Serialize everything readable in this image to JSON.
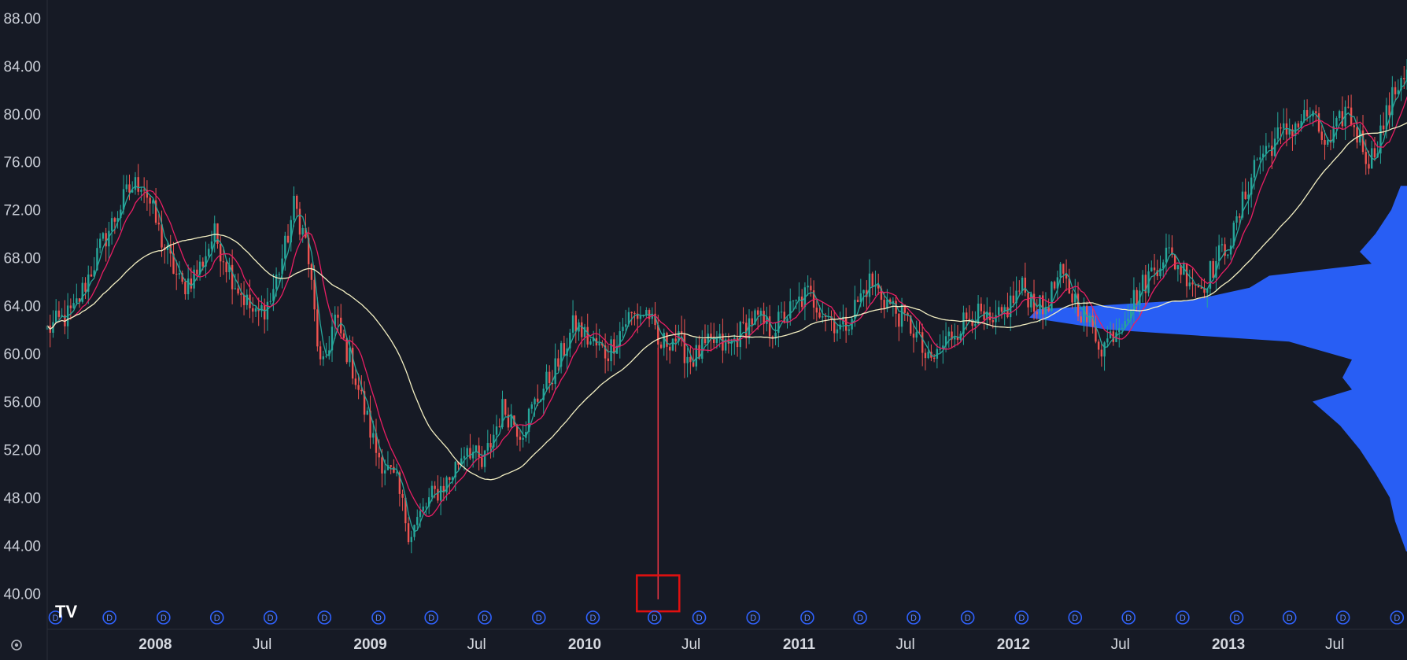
{
  "chart_data": {
    "type": "candlestick",
    "y_axis": {
      "min": 37.0,
      "max": 89.5,
      "ticks": [
        "88.00",
        "84.00",
        "80.00",
        "76.00",
        "72.00",
        "68.00",
        "64.00",
        "60.00",
        "56.00",
        "52.00",
        "48.00",
        "44.00",
        "40.00"
      ]
    },
    "x_axis": {
      "start": "2007-07",
      "end": "2013-11",
      "ticks": [
        {
          "label": "2008",
          "date": "2008-01-01",
          "type": "year"
        },
        {
          "label": "Jul",
          "date": "2008-07-01",
          "type": "month"
        },
        {
          "label": "2009",
          "date": "2009-01-01",
          "type": "year"
        },
        {
          "label": "Jul",
          "date": "2009-07-01",
          "type": "month"
        },
        {
          "label": "2010",
          "date": "2010-01-01",
          "type": "year"
        },
        {
          "label": "Jul",
          "date": "2010-07-01",
          "type": "month"
        },
        {
          "label": "2011",
          "date": "2011-01-01",
          "type": "year"
        },
        {
          "label": "Jul",
          "date": "2011-07-01",
          "type": "month"
        },
        {
          "label": "2012",
          "date": "2012-01-01",
          "type": "year"
        },
        {
          "label": "Jul",
          "date": "2012-07-01",
          "type": "month"
        },
        {
          "label": "2013",
          "date": "2013-01-01",
          "type": "year"
        },
        {
          "label": "Jul",
          "date": "2013-07-01",
          "type": "month"
        }
      ]
    },
    "price_path": [
      [
        "2007-07-01",
        62.0
      ],
      [
        "2007-08-15",
        63.5
      ],
      [
        "2007-10-01",
        69.0
      ],
      [
        "2007-11-15",
        73.5
      ],
      [
        "2007-12-10",
        74.5
      ],
      [
        "2008-01-15",
        69.0
      ],
      [
        "2008-02-15",
        65.5
      ],
      [
        "2008-03-15",
        67.0
      ],
      [
        "2008-04-10",
        70.0
      ],
      [
        "2008-05-15",
        66.0
      ],
      [
        "2008-06-20",
        63.0
      ],
      [
        "2008-07-15",
        64.5
      ],
      [
        "2008-08-10",
        69.0
      ],
      [
        "2008-08-25",
        72.5
      ],
      [
        "2008-09-15",
        69.0
      ],
      [
        "2008-10-10",
        58.0
      ],
      [
        "2008-11-01",
        63.0
      ],
      [
        "2008-12-01",
        59.0
      ],
      [
        "2009-01-10",
        52.0
      ],
      [
        "2009-02-15",
        49.0
      ],
      [
        "2009-03-09",
        45.0
      ],
      [
        "2009-04-15",
        48.0
      ],
      [
        "2009-05-15",
        49.5
      ],
      [
        "2009-06-15",
        52.5
      ],
      [
        "2009-07-10",
        50.5
      ],
      [
        "2009-08-15",
        55.5
      ],
      [
        "2009-09-15",
        53.5
      ],
      [
        "2009-10-15",
        56.5
      ],
      [
        "2009-11-15",
        59.0
      ],
      [
        "2009-12-15",
        62.5
      ],
      [
        "2010-01-10",
        61.0
      ],
      [
        "2010-02-08",
        60.0
      ],
      [
        "2010-03-15",
        63.0
      ],
      [
        "2010-04-20",
        63.5
      ],
      [
        "2010-05-06",
        60.5
      ],
      [
        "2010-06-01",
        61.5
      ],
      [
        "2010-07-01",
        59.5
      ],
      [
        "2010-08-10",
        61.0
      ],
      [
        "2010-09-01",
        60.5
      ],
      [
        "2010-10-15",
        63.0
      ],
      [
        "2010-11-15",
        62.0
      ],
      [
        "2011-01-15",
        65.0
      ],
      [
        "2011-03-15",
        62.0
      ],
      [
        "2011-05-01",
        66.0
      ],
      [
        "2011-06-15",
        63.5
      ],
      [
        "2011-07-15",
        62.0
      ],
      [
        "2011-08-10",
        59.0
      ],
      [
        "2011-09-15",
        61.5
      ],
      [
        "2011-10-25",
        63.5
      ],
      [
        "2011-11-25",
        62.0
      ],
      [
        "2012-01-15",
        65.5
      ],
      [
        "2012-02-20",
        63.5
      ],
      [
        "2012-03-20",
        66.5
      ],
      [
        "2012-04-15",
        64.5
      ],
      [
        "2012-06-01",
        60.5
      ],
      [
        "2012-07-10",
        63.5
      ],
      [
        "2012-09-15",
        68.5
      ],
      [
        "2012-11-15",
        65.5
      ],
      [
        "2012-12-15",
        68.0
      ],
      [
        "2013-01-10",
        70.0
      ],
      [
        "2013-02-15",
        76.0
      ],
      [
        "2013-03-25",
        78.0
      ],
      [
        "2013-05-20",
        80.0
      ],
      [
        "2013-06-20",
        77.0
      ],
      [
        "2013-07-20",
        80.5
      ],
      [
        "2013-08-30",
        76.0
      ],
      [
        "2013-10-20",
        83.0
      ],
      [
        "2013-11-15",
        85.0
      ]
    ],
    "spike": {
      "date": "2010-05-06",
      "low": 39.5,
      "color": "#f23645"
    },
    "moving_averages": [
      {
        "window": 20,
        "color": "#26a69a"
      },
      {
        "window": 50,
        "color": "#e91e63"
      },
      {
        "window": 200,
        "color": "#f3efc2"
      }
    ],
    "up_color": "#26a69a",
    "down_color": "#ef5350",
    "volume_profile": {
      "color": "#2962ff",
      "rows": [
        [
          43.5,
          1
        ],
        [
          46,
          15
        ],
        [
          48,
          22
        ],
        [
          50,
          40
        ],
        [
          52,
          60
        ],
        [
          54,
          85
        ],
        [
          56,
          120
        ],
        [
          57,
          70
        ],
        [
          58,
          82
        ],
        [
          59.5,
          70
        ],
        [
          61,
          150
        ],
        [
          62,
          380
        ],
        [
          63,
          480
        ],
        [
          63.7,
          470
        ],
        [
          64.5,
          270
        ],
        [
          65.5,
          200
        ],
        [
          66.5,
          175
        ],
        [
          67.5,
          45
        ],
        [
          68.5,
          60
        ],
        [
          70,
          40
        ],
        [
          72,
          20
        ],
        [
          74,
          8
        ]
      ]
    },
    "dividend_marks": [
      "2007-07-15",
      "2007-10-15",
      "2008-01-15",
      "2008-04-15",
      "2008-07-15",
      "2008-10-15",
      "2009-01-15",
      "2009-04-15",
      "2009-07-15",
      "2009-10-15",
      "2010-01-15",
      "2010-04-30",
      "2010-07-15",
      "2010-10-15",
      "2011-01-15",
      "2011-04-15",
      "2011-07-15",
      "2011-10-15",
      "2012-01-15",
      "2012-04-15",
      "2012-07-15",
      "2012-10-15",
      "2013-01-15",
      "2013-04-15",
      "2013-07-15",
      "2013-10-15"
    ],
    "dividend_label": "D",
    "highlight_box": {
      "date": "2010-05-06",
      "top": 41.5,
      "bottom": 38.5,
      "color": "#e01010"
    }
  },
  "logo": "TV",
  "settings_icon": "gear-icon",
  "colors": {
    "background": "#161a25",
    "axis_border": "#2a2e39"
  }
}
